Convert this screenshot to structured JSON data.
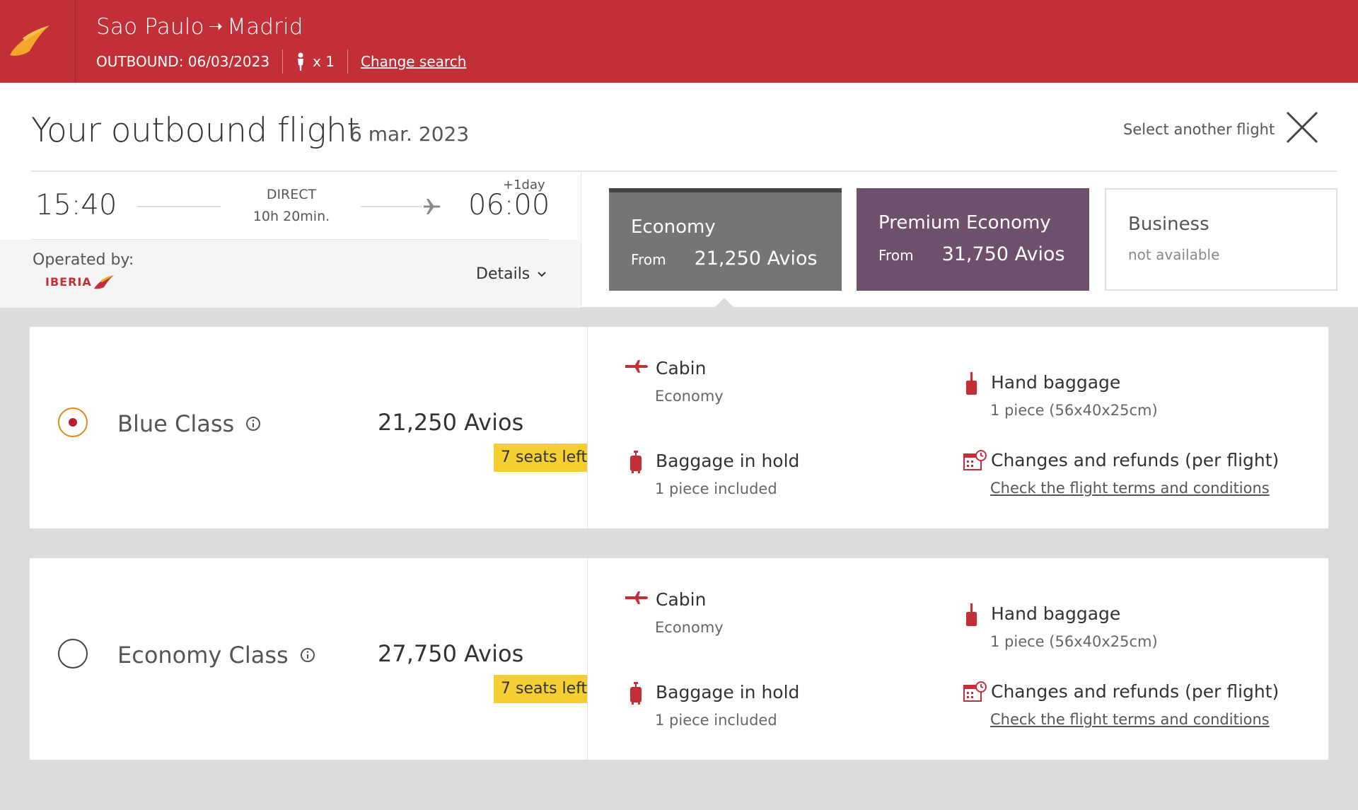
{
  "header": {
    "origin": "Sao Paulo",
    "arrow": "➝",
    "destination": "Madrid",
    "outbound_label": "OUTBOUND: 06/03/2023",
    "passengers": "x 1",
    "change_search": "Change search"
  },
  "summary": {
    "title": "Your outbound flight",
    "date": "6 mar. 2023",
    "select_another": "Select another flight",
    "departure_time": "15:40",
    "arrival_time": "06:00",
    "plus_day": "+1day",
    "stops": "DIRECT",
    "duration": "10h 20min.",
    "operated_by": "Operated by:",
    "airline": "IBERIA",
    "details": "Details"
  },
  "cabins": [
    {
      "name": "Economy",
      "from": "From",
      "price": "21,250 Avios"
    },
    {
      "name": "Premium Economy",
      "from": "From",
      "price": "31,750 Avios"
    },
    {
      "name": "Business",
      "status": "not available"
    }
  ],
  "fares": [
    {
      "name": "Blue Class",
      "price": "21,250 Avios",
      "seats_left": "7 seats left",
      "selected": true,
      "cabin_title": "Cabin",
      "cabin_value": "Economy",
      "hand_title": "Hand baggage",
      "hand_value": "1 piece (56x40x25cm)",
      "hold_title": "Baggage in hold",
      "hold_value": "1 piece included",
      "changes_title": "Changes and refunds (per flight)",
      "changes_link": "Check the flight terms and conditions"
    },
    {
      "name": "Economy Class",
      "price": "27,750 Avios",
      "seats_left": "7 seats left",
      "selected": false,
      "cabin_title": "Cabin",
      "cabin_value": "Economy",
      "hand_title": "Hand baggage",
      "hand_value": "1 piece (56x40x25cm)",
      "hold_title": "Baggage in hold",
      "hold_value": "1 piece included",
      "changes_title": "Changes and refunds (per flight)",
      "changes_link": "Check the flight terms and conditions"
    }
  ],
  "colors": {
    "brand_red": "#c32f37",
    "economy_card": "#757575",
    "premium_card": "#6e4f6c",
    "seats_badge": "#f5cf2f"
  }
}
